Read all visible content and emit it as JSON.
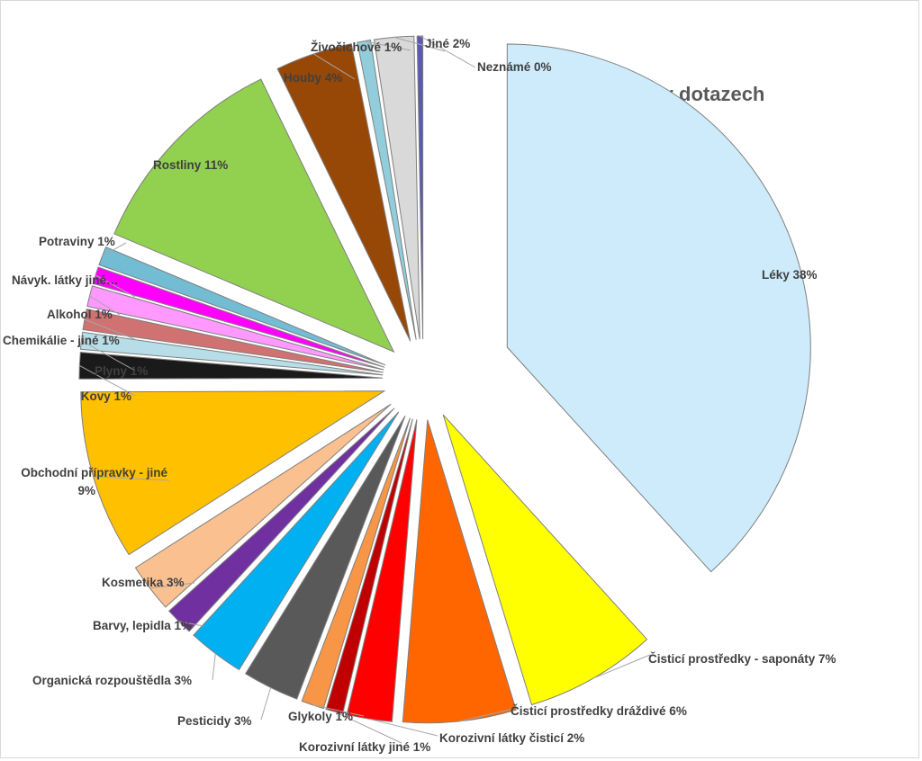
{
  "chart_data": {
    "type": "pie",
    "title": "Typy nox v dotazech",
    "exploded": true,
    "start_angle_deg": 0,
    "direction": "clockwise",
    "slices": [
      {
        "label": "Léky 38%",
        "value": 38.2,
        "color": "#cdebfb"
      },
      {
        "label": "Čisticí prostředky - saponáty 7%",
        "value": 7.0,
        "color": "#ffff00"
      },
      {
        "label": "Čisticí prostředky dráždivé 6%",
        "value": 6.0,
        "color": "#ff6600"
      },
      {
        "label": "Korozivní látky čisticí  2%",
        "value": 2.4,
        "color": "#ff0000"
      },
      {
        "label": "Korozivní látky jiné 1%",
        "value": 0.9,
        "color": "#c00000"
      },
      {
        "label": "Glykoly 1%",
        "value": 1.2,
        "color": "#f79646"
      },
      {
        "label": "Pesticidy 3%",
        "value": 3.0,
        "color": "#595959"
      },
      {
        "label": "Organická rozpouštědla 3%",
        "value": 3.0,
        "color": "#00b0f0"
      },
      {
        "label": "Barvy, lepidla 1%",
        "value": 1.5,
        "color": "#7030a0"
      },
      {
        "label": "Kosmetika 3%",
        "value": 2.6,
        "color": "#fac090"
      },
      {
        "label": "Obchodní přípravky - jiné 9%",
        "value": 9.0,
        "color": "#ffc000"
      },
      {
        "label": "Kovy 1%",
        "value": 1.4,
        "color": "#1a1a1a"
      },
      {
        "label": "Plyny 1%",
        "value": 0.9,
        "color": "#b7dee8"
      },
      {
        "label": "Chemikálie - jiné 1%",
        "value": 1.1,
        "color": "#d07272"
      },
      {
        "label": "Alkohol 1%",
        "value": 1.1,
        "color": "#ff99ff"
      },
      {
        "label": "Návyk. látky jiné…",
        "value": 0.9,
        "color": "#ff00ff"
      },
      {
        "label": "Potraviny 1%",
        "value": 1.0,
        "color": "#72bcd4"
      },
      {
        "label": "Rostliny 11%",
        "value": 11.4,
        "color": "#92d050"
      },
      {
        "label": "Houby 4%",
        "value": 4.1,
        "color": "#974706"
      },
      {
        "label": "Živočichové 1%",
        "value": 0.7,
        "color": "#92cddc"
      },
      {
        "label": "Jiné 2%",
        "value": 2.1,
        "color": "#d9d9d9"
      },
      {
        "label": "Neznámé 0%",
        "value": 0.3,
        "color": "#5a5ab4"
      }
    ]
  }
}
